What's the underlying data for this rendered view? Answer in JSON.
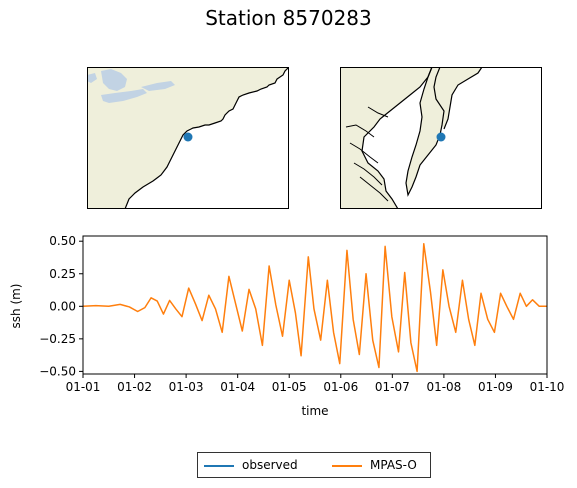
{
  "title": "Station 8570283",
  "colors": {
    "land": "#efefdb",
    "lakes": "#c2d3e4",
    "station_marker": "#1f77b4",
    "observed": "#1f77b4",
    "model": "#ff7f0e"
  },
  "maps": [
    {
      "name": "regional-map",
      "marker": "station"
    },
    {
      "name": "local-map",
      "marker": "station"
    }
  ],
  "chart_data": {
    "type": "line",
    "title": "",
    "xlabel": "time",
    "ylabel": "ssh (m)",
    "xlim": [
      0,
      9
    ],
    "ylim": [
      -0.52,
      0.54
    ],
    "xticks": [
      {
        "value": 0,
        "label": "01-01"
      },
      {
        "value": 1,
        "label": "01-02"
      },
      {
        "value": 2,
        "label": "01-03"
      },
      {
        "value": 3,
        "label": "01-04"
      },
      {
        "value": 4,
        "label": "01-05"
      },
      {
        "value": 5,
        "label": "01-06"
      },
      {
        "value": 6,
        "label": "01-07"
      },
      {
        "value": 7,
        "label": "01-08"
      },
      {
        "value": 8,
        "label": "01-09"
      },
      {
        "value": 9,
        "label": "01-10"
      }
    ],
    "yticks": [
      {
        "value": 0.5,
        "label": "0.50"
      },
      {
        "value": 0.25,
        "label": "0.25"
      },
      {
        "value": 0.0,
        "label": "0.00"
      },
      {
        "value": -0.25,
        "label": "−0.25"
      },
      {
        "value": -0.5,
        "label": "−0.50"
      }
    ],
    "legend": {
      "placement": "below",
      "entries": [
        "observed",
        "MPAS-O"
      ]
    },
    "series": [
      {
        "name": "observed",
        "x": [],
        "y": []
      },
      {
        "name": "MPAS-O",
        "x": [
          0,
          0.25,
          0.5,
          0.72,
          0.9,
          1.06,
          1.2,
          1.32,
          1.44,
          1.56,
          1.68,
          1.8,
          1.92,
          2.05,
          2.18,
          2.31,
          2.44,
          2.57,
          2.7,
          2.83,
          2.96,
          3.09,
          3.22,
          3.35,
          3.48,
          3.61,
          3.74,
          3.87,
          4.0,
          4.12,
          4.23,
          4.37,
          4.48,
          4.61,
          4.74,
          4.86,
          4.98,
          5.12,
          5.24,
          5.36,
          5.49,
          5.62,
          5.74,
          5.86,
          5.99,
          6.12,
          6.24,
          6.36,
          6.48,
          6.61,
          6.74,
          6.86,
          6.98,
          7.1,
          7.23,
          7.36,
          7.48,
          7.6,
          7.72,
          7.85,
          7.98,
          8.1,
          8.22,
          8.35,
          8.48,
          8.6,
          8.72,
          8.85,
          9.0
        ],
        "y": [
          0.0,
          0.005,
          0.0,
          0.015,
          -0.005,
          -0.04,
          -0.01,
          0.065,
          0.04,
          -0.06,
          0.045,
          -0.02,
          -0.08,
          0.14,
          0.02,
          -0.11,
          0.085,
          -0.02,
          -0.2,
          0.23,
          0.02,
          -0.19,
          0.13,
          -0.02,
          -0.3,
          0.31,
          0.01,
          -0.23,
          0.2,
          -0.05,
          -0.38,
          0.38,
          -0.02,
          -0.26,
          0.2,
          -0.2,
          -0.44,
          0.43,
          -0.1,
          -0.37,
          0.25,
          -0.26,
          -0.47,
          0.46,
          -0.08,
          -0.35,
          0.26,
          -0.28,
          -0.5,
          0.48,
          0.11,
          -0.3,
          0.28,
          0.0,
          -0.2,
          0.2,
          -0.1,
          -0.3,
          0.1,
          -0.1,
          -0.2,
          0.1,
          0.0,
          -0.1,
          0.1,
          0.0,
          0.05,
          0.0,
          0.0
        ]
      }
    ]
  }
}
